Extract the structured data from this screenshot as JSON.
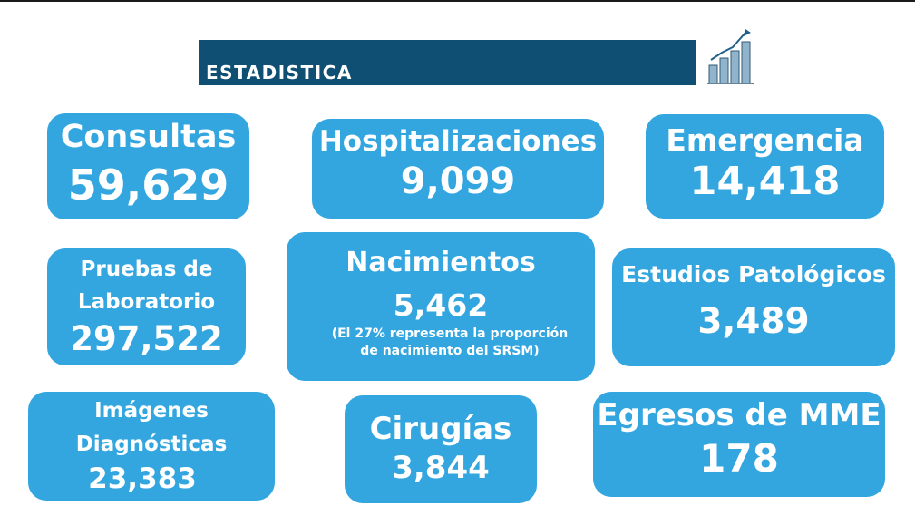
{
  "header": {
    "title": "ESTADISTICA"
  },
  "icons": {
    "header_icon": "bar-chart-growth-icon"
  },
  "colors": {
    "header_bg": "#0f4f74",
    "card_bg": "#33a6e0",
    "text": "#ffffff"
  },
  "cards": {
    "consultas": {
      "label": "Consultas",
      "value": "59,629"
    },
    "hospitalizaciones": {
      "label": "Hospitalizaciones",
      "value": "9,099"
    },
    "emergencia": {
      "label": "Emergencia",
      "value": "14,418"
    },
    "pruebas": {
      "label_line1": "Pruebas de",
      "label_line2": "Laboratorio",
      "value": "297,522"
    },
    "nacimientos": {
      "label": "Nacimientos",
      "value": "5,462",
      "note": "(El 27% representa la proporción de nacimiento del SRSM)"
    },
    "estudios": {
      "label": "Estudios Patológicos",
      "value": "3,489"
    },
    "imagenes": {
      "label_line1": "Imágenes",
      "label_line2": "Diagnósticas",
      "value": "23,383"
    },
    "cirugias": {
      "label": "Cirugías",
      "value": "3,844"
    },
    "egresos": {
      "label": "Egresos de MME",
      "value": "178"
    }
  }
}
